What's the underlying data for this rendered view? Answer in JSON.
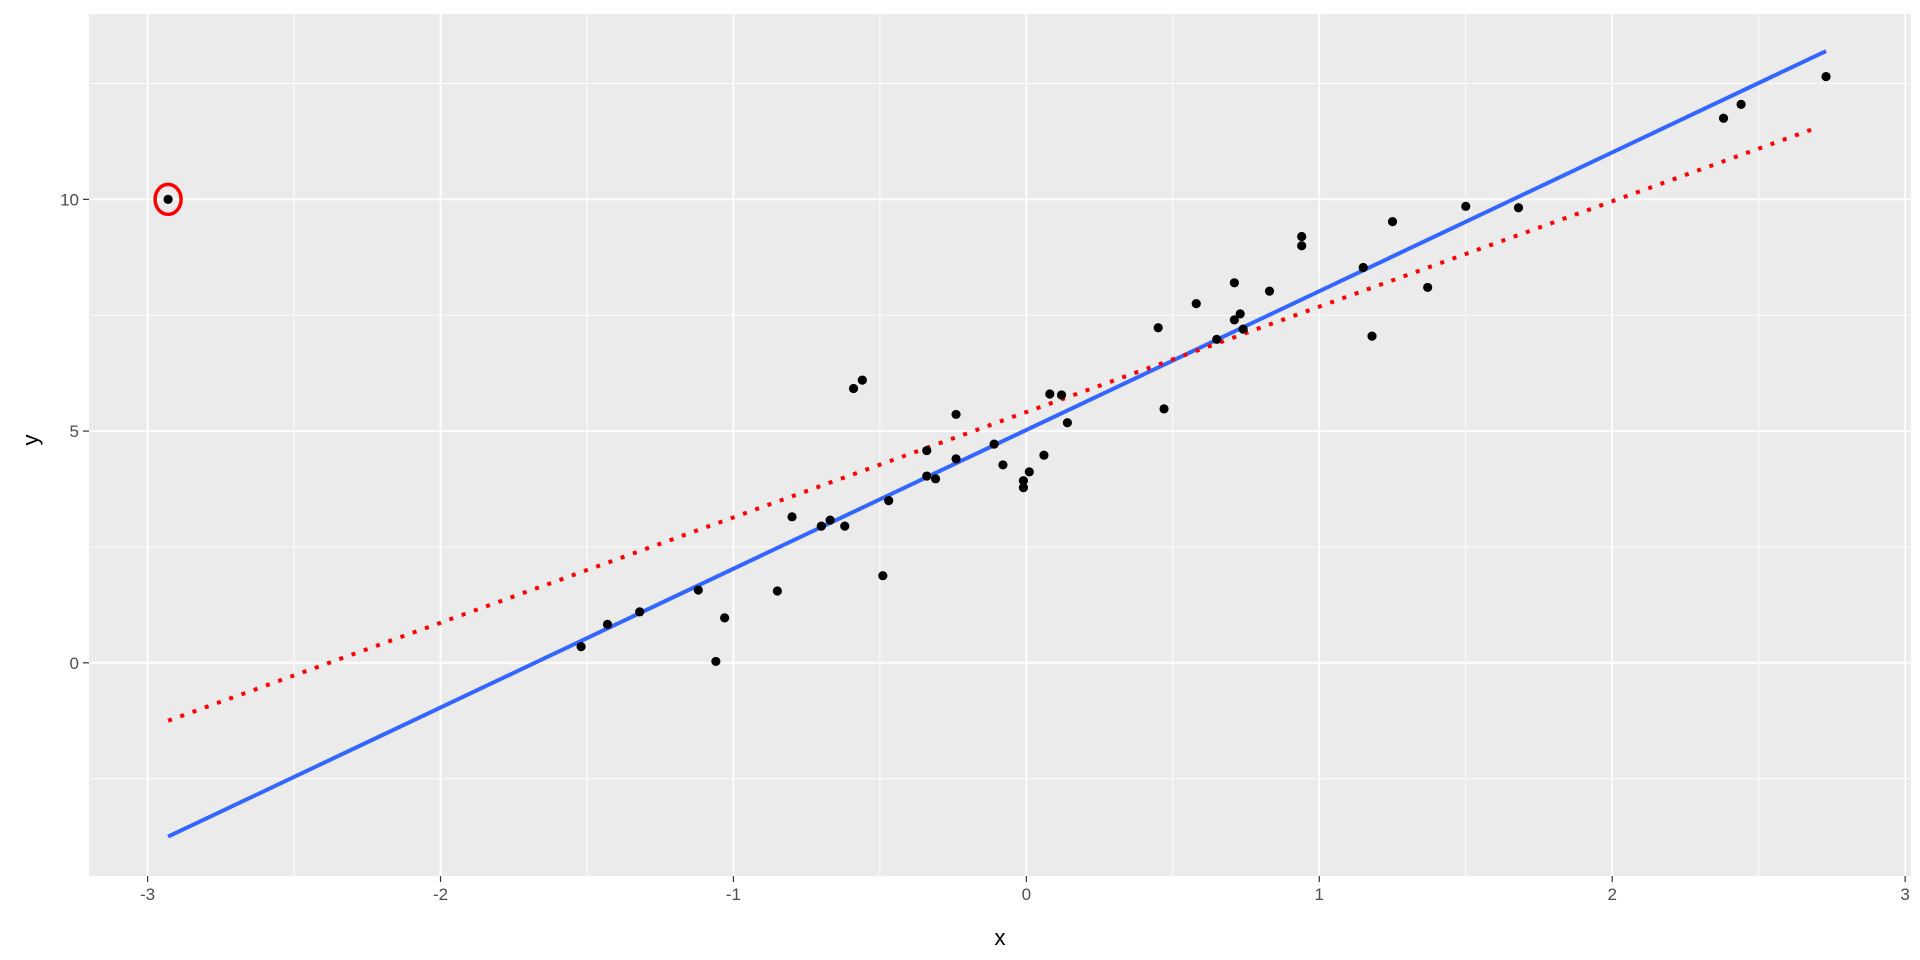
{
  "chart_data": {
    "type": "scatter",
    "title": "",
    "xlabel": "x",
    "ylabel": "y",
    "xlim": [
      -3.2,
      3.02
    ],
    "ylim": [
      -4.6,
      14.0
    ],
    "x_ticks": [
      -3,
      -2,
      -1,
      0,
      1,
      2,
      3
    ],
    "x_tick_labels": [
      "-3",
      "-2",
      "-1",
      "0",
      "1",
      "2",
      "3"
    ],
    "y_ticks": [
      0,
      5,
      10
    ],
    "y_tick_labels": [
      "0",
      "5",
      "10"
    ],
    "x_minor_ticks": [
      -2.5,
      -1.5,
      -0.5,
      0.5,
      1.5,
      2.5
    ],
    "y_minor_ticks": [
      -2.5,
      2.5,
      7.5,
      12.5
    ],
    "grid": true,
    "legend": "none",
    "colors": {
      "panel": "#EBEBEB",
      "grid": "#FFFFFF",
      "points": "#000000",
      "fit_all": "#3366FF",
      "fit_robust": "#FF0000",
      "highlight": "#FF0000"
    },
    "points": [
      {
        "x": -2.93,
        "y": 10.0
      },
      {
        "x": -1.52,
        "y": 0.35
      },
      {
        "x": -1.43,
        "y": 0.83
      },
      {
        "x": -1.32,
        "y": 1.1
      },
      {
        "x": -1.12,
        "y": 1.57
      },
      {
        "x": -1.06,
        "y": 0.03
      },
      {
        "x": -1.03,
        "y": 0.97
      },
      {
        "x": -0.85,
        "y": 1.55
      },
      {
        "x": -0.8,
        "y": 3.15
      },
      {
        "x": -0.7,
        "y": 2.95
      },
      {
        "x": -0.67,
        "y": 3.08
      },
      {
        "x": -0.62,
        "y": 2.95
      },
      {
        "x": -0.59,
        "y": 5.92
      },
      {
        "x": -0.56,
        "y": 6.1
      },
      {
        "x": -0.49,
        "y": 1.88
      },
      {
        "x": -0.47,
        "y": 3.5
      },
      {
        "x": -0.34,
        "y": 4.58
      },
      {
        "x": -0.34,
        "y": 4.03
      },
      {
        "x": -0.31,
        "y": 3.97
      },
      {
        "x": -0.24,
        "y": 5.36
      },
      {
        "x": -0.24,
        "y": 4.4
      },
      {
        "x": -0.11,
        "y": 4.72
      },
      {
        "x": -0.08,
        "y": 4.27
      },
      {
        "x": -0.01,
        "y": 3.93
      },
      {
        "x": -0.01,
        "y": 3.78
      },
      {
        "x": 0.01,
        "y": 4.12
      },
      {
        "x": 0.06,
        "y": 4.48
      },
      {
        "x": 0.08,
        "y": 5.8
      },
      {
        "x": 0.12,
        "y": 5.78
      },
      {
        "x": 0.14,
        "y": 5.18
      },
      {
        "x": 0.45,
        "y": 7.23
      },
      {
        "x": 0.47,
        "y": 5.48
      },
      {
        "x": 0.58,
        "y": 7.75
      },
      {
        "x": 0.65,
        "y": 6.98
      },
      {
        "x": 0.71,
        "y": 7.4
      },
      {
        "x": 0.71,
        "y": 8.2
      },
      {
        "x": 0.73,
        "y": 7.53
      },
      {
        "x": 0.74,
        "y": 7.2
      },
      {
        "x": 0.83,
        "y": 8.02
      },
      {
        "x": 0.94,
        "y": 9.2
      },
      {
        "x": 0.94,
        "y": 9.0
      },
      {
        "x": 1.15,
        "y": 8.53
      },
      {
        "x": 1.18,
        "y": 7.05
      },
      {
        "x": 1.25,
        "y": 9.52
      },
      {
        "x": 1.37,
        "y": 8.1
      },
      {
        "x": 1.5,
        "y": 9.85
      },
      {
        "x": 1.68,
        "y": 9.82
      },
      {
        "x": 2.38,
        "y": 11.75
      },
      {
        "x": 2.44,
        "y": 12.05
      },
      {
        "x": 2.73,
        "y": 12.65
      }
    ],
    "fit_lines": [
      {
        "style": "solid",
        "x": [
          -2.93,
          2.73
        ],
        "y": [
          -3.75,
          13.2
        ]
      },
      {
        "style": "dotted",
        "x": [
          -2.93,
          2.7
        ],
        "y": [
          -1.25,
          11.55
        ]
      }
    ],
    "highlighted_point": {
      "x": -2.93,
      "y": 10.0
    }
  }
}
